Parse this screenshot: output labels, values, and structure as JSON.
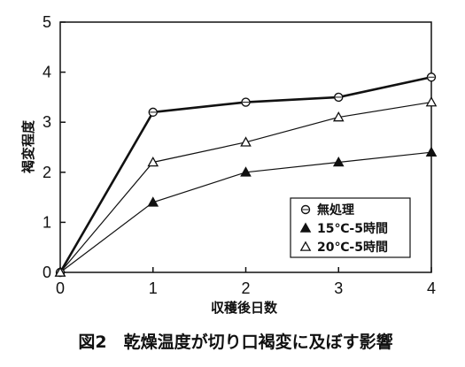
{
  "chart_data": {
    "type": "line",
    "title": "",
    "caption": "図2　乾燥温度が切り口褐変に及ぼす影響",
    "xlabel": "収穫後日数",
    "ylabel": "褐変程度",
    "x": [
      0,
      1,
      2,
      3,
      4
    ],
    "xticks": [
      "0",
      "1",
      "2",
      "3",
      "4"
    ],
    "yticks": [
      "0",
      "1",
      "2",
      "3",
      "4",
      "5"
    ],
    "xlim": [
      0,
      4
    ],
    "ylim": [
      0,
      5
    ],
    "grid": false,
    "legend_position": "bottom-right",
    "series": [
      {
        "name": "無処理",
        "marker": "open-circle",
        "line_weight": "heavy",
        "values": [
          0,
          3.2,
          3.4,
          3.5,
          3.9
        ]
      },
      {
        "name": "15℃-5時間",
        "marker": "filled-triangle",
        "line_weight": "normal",
        "values": [
          0,
          1.4,
          2.0,
          2.2,
          2.4
        ]
      },
      {
        "name": "20℃-5時間",
        "marker": "open-triangle",
        "line_weight": "normal",
        "values": [
          0,
          2.2,
          2.6,
          3.1,
          3.4
        ]
      }
    ]
  }
}
